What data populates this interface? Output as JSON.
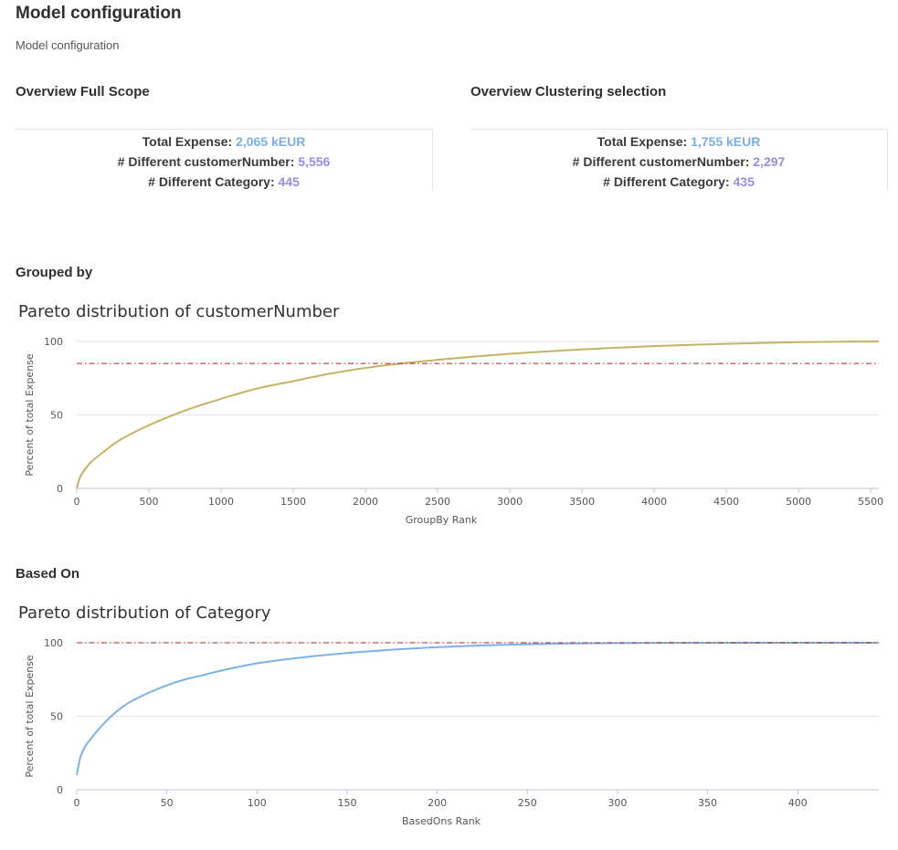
{
  "page": {
    "title": "Model configuration",
    "subtitle": "Model configuration"
  },
  "overview_full": {
    "title": "Overview Full Scope",
    "lines": [
      {
        "label": "Total Expense:",
        "value": "2,065 kEUR",
        "color": "#7aaee6"
      },
      {
        "label": "# Different customerNumber:",
        "value": "5,556",
        "color": "#9a8ae8"
      },
      {
        "label": "# Different Category:",
        "value": "445",
        "color": "#9a8ae8"
      }
    ]
  },
  "overview_cluster": {
    "title": "Overview Clustering selection",
    "lines": [
      {
        "label": "Total Expense:",
        "value": "1,755 kEUR",
        "color": "#7aaee6"
      },
      {
        "label": "# Different customerNumber:",
        "value": "2,297",
        "color": "#9a8ae8"
      },
      {
        "label": "# Different Category:",
        "value": "435",
        "color": "#9a8ae8"
      }
    ]
  },
  "grouped_by": {
    "title": "Grouped by"
  },
  "based_on": {
    "title": "Based On"
  },
  "chart_data": [
    {
      "type": "line",
      "title": "Pareto distribution of customerNumber",
      "xlabel": "GroupBy Rank",
      "ylabel": "Percent of total Expense",
      "xlim": [
        0,
        5556
      ],
      "ylim": [
        0,
        100
      ],
      "xticks": [
        0,
        500,
        1000,
        1500,
        2000,
        2500,
        3000,
        3500,
        4000,
        4500,
        5000,
        5500
      ],
      "yticks": [
        0,
        50,
        100
      ],
      "grid": "horizontal",
      "line_color": "#c2b464",
      "threshold": {
        "y": 85,
        "color": "#b22222",
        "style": "dash-dot"
      },
      "series": [
        {
          "x": [
            0,
            20,
            50,
            100,
            200,
            300,
            500,
            750,
            1000,
            1250,
            1500,
            1750,
            2000,
            2250,
            2500,
            2750,
            3000,
            3250,
            3500,
            3750,
            4000,
            4250,
            4500,
            4750,
            5000,
            5250,
            5556
          ],
          "values": [
            0,
            7,
            12,
            18,
            26,
            33,
            43,
            53,
            61,
            68,
            73,
            78,
            82,
            85,
            87.5,
            89.7,
            91.6,
            93.2,
            94.6,
            95.8,
            96.8,
            97.7,
            98.4,
            99,
            99.5,
            99.8,
            100
          ]
        }
      ]
    },
    {
      "type": "line",
      "title": "Pareto distribution of Category",
      "xlabel": "BasedOns Rank",
      "ylabel": "Percent of total Expense",
      "xlim": [
        0,
        445
      ],
      "ylim": [
        0,
        100
      ],
      "xticks": [
        0,
        50,
        100,
        150,
        200,
        250,
        300,
        350,
        400
      ],
      "yticks": [
        0,
        50,
        100
      ],
      "grid": "horizontal",
      "line_color": "#7ab3e8",
      "threshold": {
        "y": 100,
        "color": "#b22222",
        "style": "dash-dot"
      },
      "series": [
        {
          "x": [
            0,
            2,
            5,
            10,
            15,
            20,
            25,
            30,
            40,
            50,
            60,
            70,
            80,
            100,
            125,
            150,
            175,
            200,
            225,
            250,
            275,
            300,
            350,
            400,
            445
          ],
          "values": [
            10,
            22,
            30,
            38,
            45,
            51,
            56,
            60,
            66,
            71,
            75,
            78,
            81,
            86,
            90,
            93,
            95.3,
            97,
            98.2,
            99,
            99.5,
            99.8,
            99.95,
            100,
            100
          ]
        }
      ]
    }
  ]
}
